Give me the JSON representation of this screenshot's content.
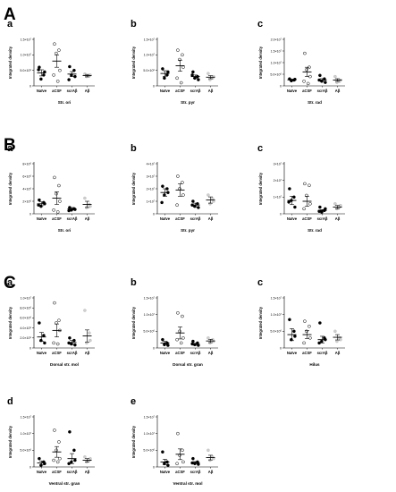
{
  "figure": {
    "panels": [
      {
        "label": "A"
      },
      {
        "label": "B"
      },
      {
        "label": "C"
      }
    ]
  },
  "chart_data": [
    {
      "type": "scatter",
      "panel": "A",
      "sub": "a",
      "xlabel": "Str. ori",
      "ylabel": "Integrated density",
      "ylim": [
        0,
        15000000
      ],
      "yticks": [
        {
          "v": 0,
          "label": "0"
        },
        {
          "v": 5000000,
          "label": "5.0×10⁶"
        },
        {
          "v": 10000000,
          "label": "1.0×10⁷"
        },
        {
          "v": 15000000,
          "label": "1.5×10⁷"
        }
      ],
      "categories": [
        "Naïve",
        "aCSF",
        "scrAβ",
        "Aβ"
      ],
      "series": [
        {
          "points": [
            6000000,
            3500000,
            2200000,
            4500000,
            5200000
          ],
          "mean": 4200000,
          "sem": 1000000
        },
        {
          "points": [
            13500000,
            11500000,
            10500000,
            5000000,
            3500000,
            1500000
          ],
          "mean": 8000000,
          "sem": 2000000
        },
        {
          "points": [
            6200000,
            5000000,
            3500000,
            3000000,
            2000000
          ],
          "mean": 3800000,
          "sem": 800000
        },
        {
          "points": [
            3800000,
            3200000,
            3000000,
            3500000
          ],
          "mean": 3300000,
          "sem": 400000
        }
      ]
    },
    {
      "type": "scatter",
      "panel": "A",
      "sub": "b",
      "xlabel": "Str. pyr",
      "ylabel": "Integrated density",
      "ylim": [
        0,
        15000000
      ],
      "yticks": [
        {
          "v": 0,
          "label": "0"
        },
        {
          "v": 5000000,
          "label": "5.0×10⁶"
        },
        {
          "v": 10000000,
          "label": "1.0×10⁷"
        },
        {
          "v": 15000000,
          "label": "1.5×10⁷"
        }
      ],
      "categories": [
        "Naïve",
        "aCSF",
        "scrAβ",
        "Aβ"
      ],
      "series": [
        {
          "points": [
            5500000,
            3500000,
            2500000,
            4500000
          ],
          "mean": 4000000,
          "sem": 900000
        },
        {
          "points": [
            11500000,
            10000000,
            8500000,
            6000000,
            2500000,
            1000000
          ],
          "mean": 6500000,
          "sem": 1800000
        },
        {
          "points": [
            4500000,
            3000000,
            2500000,
            2000000,
            3500000
          ],
          "mean": 3000000,
          "sem": 500000
        },
        {
          "points": [
            4000000,
            2500000,
            2000000,
            3000000
          ],
          "mean": 2800000,
          "sem": 500000
        }
      ]
    },
    {
      "type": "scatter",
      "panel": "A",
      "sub": "c",
      "xlabel": "Str. rad",
      "ylabel": "Integrated density",
      "ylim": [
        0,
        20000000
      ],
      "yticks": [
        {
          "v": 0,
          "label": "0"
        },
        {
          "v": 5000000,
          "label": "5.0×10⁶"
        },
        {
          "v": 10000000,
          "label": "1.0×10⁷"
        },
        {
          "v": 15000000,
          "label": "1.5×10⁷"
        },
        {
          "v": 20000000,
          "label": "2.0×10⁷"
        }
      ],
      "categories": [
        "Naïve",
        "aCSF",
        "scrAβ",
        "Aβ"
      ],
      "series": [
        {
          "points": [
            3000000,
            2500000,
            2200000,
            2800000
          ],
          "mean": 2600000,
          "sem": 300000
        },
        {
          "points": [
            14000000,
            8000000,
            7000000,
            4000000,
            2000000,
            1000000
          ],
          "mean": 6000000,
          "sem": 2000000
        },
        {
          "points": [
            4500000,
            3000000,
            2000000,
            1500000,
            2500000
          ],
          "mean": 2500000,
          "sem": 600000
        },
        {
          "points": [
            4000000,
            2000000,
            1500000,
            2500000
          ],
          "mean": 2500000,
          "sem": 600000
        }
      ]
    },
    {
      "type": "scatter",
      "panel": "B",
      "sub": "a",
      "xlabel": "Str. ori",
      "ylabel": "Integrated density",
      "ylim": [
        0,
        8000000
      ],
      "yticks": [
        {
          "v": 0,
          "label": "0"
        },
        {
          "v": 2000000,
          "label": "2×10⁶"
        },
        {
          "v": 4000000,
          "label": "4×10⁶"
        },
        {
          "v": 6000000,
          "label": "6×10⁶"
        },
        {
          "v": 8000000,
          "label": "8×10⁶"
        }
      ],
      "categories": [
        "Naïve",
        "aCSF",
        "scrAβ",
        "Aβ"
      ],
      "series": [
        {
          "points": [
            2200000,
            1800000,
            1200000,
            1600000,
            1400000
          ],
          "mean": 1600000,
          "sem": 300000
        },
        {
          "points": [
            5800000,
            4500000,
            3200000,
            2000000,
            600000,
            300000
          ],
          "mean": 2500000,
          "sem": 1000000
        },
        {
          "points": [
            1000000,
            800000,
            600000,
            700000,
            500000
          ],
          "mean": 800000,
          "sem": 200000
        },
        {
          "points": [
            2500000,
            1500000,
            1000000,
            1200000
          ],
          "mean": 1500000,
          "sem": 500000
        }
      ]
    },
    {
      "type": "scatter",
      "panel": "B",
      "sub": "b",
      "xlabel": "Str. pyr",
      "ylabel": "Integrated density",
      "ylim": [
        0,
        40000000
      ],
      "yticks": [
        {
          "v": 0,
          "label": "0"
        },
        {
          "v": 10000000,
          "label": "1×10⁷"
        },
        {
          "v": 20000000,
          "label": "2×10⁷"
        },
        {
          "v": 30000000,
          "label": "3×10⁷"
        },
        {
          "v": 40000000,
          "label": "4×10⁷"
        }
      ],
      "categories": [
        "Naïve",
        "aCSF",
        "scrAβ",
        "Aβ"
      ],
      "series": [
        {
          "points": [
            22000000,
            20000000,
            15000000,
            17000000,
            9000000
          ],
          "mean": 17000000,
          "sem": 3000000
        },
        {
          "points": [
            30000000,
            25000000,
            20000000,
            15000000,
            7000000
          ],
          "mean": 19000000,
          "sem": 5000000
        },
        {
          "points": [
            10000000,
            8000000,
            6000000,
            5000000,
            7000000
          ],
          "mean": 7000000,
          "sem": 1500000
        },
        {
          "points": [
            15000000,
            12000000,
            8000000,
            10000000
          ],
          "mean": 11000000,
          "sem": 2500000
        }
      ]
    },
    {
      "type": "scatter",
      "panel": "B",
      "sub": "c",
      "xlabel": "Str. rad",
      "ylabel": "Integrated density",
      "ylim": [
        0,
        30000000
      ],
      "yticks": [
        {
          "v": 0,
          "label": "0"
        },
        {
          "v": 10000000,
          "label": "1×10⁷"
        },
        {
          "v": 20000000,
          "label": "2×10⁷"
        },
        {
          "v": 30000000,
          "label": "3×10⁷"
        }
      ],
      "categories": [
        "Naïve",
        "aCSF",
        "scrAβ",
        "Aβ"
      ],
      "series": [
        {
          "points": [
            15000000,
            10000000,
            8000000,
            4000000,
            7000000
          ],
          "mean": 8000000,
          "sem": 2500000
        },
        {
          "points": [
            18000000,
            17000000,
            11000000,
            6000000,
            3000000
          ],
          "mean": 7500000,
          "sem": 3000000
        },
        {
          "points": [
            4000000,
            2000000,
            1000000,
            3000000,
            1500000
          ],
          "mean": 2000000,
          "sem": 500000
        },
        {
          "points": [
            6000000,
            4000000,
            3000000,
            5000000
          ],
          "mean": 4000000,
          "sem": 1000000
        }
      ]
    },
    {
      "type": "scatter",
      "panel": "C",
      "sub": "a",
      "xlabel": "Dorsal str. mol",
      "ylabel": "Integrated density",
      "ylim": [
        0,
        10000000
      ],
      "yticks": [
        {
          "v": 0,
          "label": "0"
        },
        {
          "v": 2000000,
          "label": "2.0×10⁶"
        },
        {
          "v": 4000000,
          "label": "4.0×10⁶"
        },
        {
          "v": 6000000,
          "label": "6.0×10⁶"
        },
        {
          "v": 8000000,
          "label": "8.0×10⁶"
        },
        {
          "v": 10000000,
          "label": "1.0×10⁷"
        }
      ],
      "categories": [
        "Naïve",
        "aCSF",
        "scrAβ",
        "Aβ"
      ],
      "series": [
        {
          "points": [
            5000000,
            2500000,
            1500000,
            1000000
          ],
          "mean": 2200000,
          "sem": 900000
        },
        {
          "points": [
            9000000,
            5500000,
            5000000,
            3500000,
            1000000,
            800000
          ],
          "mean": 3500000,
          "sem": 1300000
        },
        {
          "points": [
            2000000,
            1500000,
            800000,
            600000,
            1000000
          ],
          "mean": 1100000,
          "sem": 400000
        },
        {
          "points": [
            7500000,
            3000000,
            1000000,
            1500000
          ],
          "mean": 2400000,
          "sem": 1200000
        }
      ]
    },
    {
      "type": "scatter",
      "panel": "C",
      "sub": "b",
      "xlabel": "Dorsal str. gran",
      "ylabel": "Integrated density",
      "ylim": [
        0,
        15000000
      ],
      "yticks": [
        {
          "v": 0,
          "label": "0"
        },
        {
          "v": 5000000,
          "label": "5.0×10⁶"
        },
        {
          "v": 10000000,
          "label": "1.0×10⁷"
        },
        {
          "v": 15000000,
          "label": "1.5×10⁷"
        }
      ],
      "categories": [
        "Naïve",
        "aCSF",
        "scrAβ",
        "Aβ"
      ],
      "series": [
        {
          "points": [
            2500000,
            1500000,
            1000000,
            800000
          ],
          "mean": 1500000,
          "sem": 500000
        },
        {
          "points": [
            10500000,
            9500000,
            5000000,
            3000000,
            2500000,
            1500000
          ],
          "mean": 4500000,
          "sem": 1800000
        },
        {
          "points": [
            2000000,
            1500000,
            1000000,
            800000,
            1200000
          ],
          "mean": 1100000,
          "sem": 300000
        },
        {
          "points": [
            3000000,
            2500000,
            1500000,
            2000000
          ],
          "mean": 2100000,
          "sem": 500000
        }
      ]
    },
    {
      "type": "scatter",
      "panel": "C",
      "sub": "c",
      "xlabel": "Hilus",
      "ylabel": "Integrated density",
      "ylim": [
        0,
        15000000
      ],
      "yticks": [
        {
          "v": 0,
          "label": "0"
        },
        {
          "v": 5000000,
          "label": "5.0×10⁶"
        },
        {
          "v": 10000000,
          "label": "1.0×10⁷"
        },
        {
          "v": 15000000,
          "label": "1.5×10⁷"
        }
      ],
      "categories": [
        "Naïve",
        "aCSF",
        "scrAβ",
        "Aβ"
      ],
      "series": [
        {
          "points": [
            8500000,
            5000000,
            2500000,
            3500000
          ],
          "mean": 4000000,
          "sem": 1800000
        },
        {
          "points": [
            8000000,
            6500000,
            5000000,
            3000000,
            1500000
          ],
          "mean": 4000000,
          "sem": 1200000
        },
        {
          "points": [
            7500000,
            3000000,
            2000000,
            2500000,
            1500000
          ],
          "mean": 2500000,
          "sem": 1000000
        },
        {
          "points": [
            5000000,
            3000000,
            2000000,
            2500000
          ],
          "mean": 3200000,
          "sem": 800000
        }
      ]
    },
    {
      "type": "scatter",
      "panel": "C",
      "sub": "d",
      "xlabel": "Ventral str. gran",
      "ylabel": "Integrated density",
      "ylim": [
        0,
        15000000
      ],
      "yticks": [
        {
          "v": 0,
          "label": "0"
        },
        {
          "v": 5000000,
          "label": "5.0×10⁶"
        },
        {
          "v": 10000000,
          "label": "1.0×10⁷"
        },
        {
          "v": 15000000,
          "label": "1.5×10⁷"
        }
      ],
      "categories": [
        "Naïve",
        "aCSF",
        "scrAβ",
        "Aβ"
      ],
      "series": [
        {
          "points": [
            2500000,
            1500000,
            500000,
            1000000
          ],
          "mean": 1200000,
          "sem": 600000
        },
        {
          "points": [
            11000000,
            7500000,
            5000000,
            2500000,
            2000000,
            1500000
          ],
          "mean": 4500000,
          "sem": 1600000
        },
        {
          "points": [
            10500000,
            5000000,
            1500000,
            2000000,
            1000000
          ],
          "mean": 2500000,
          "sem": 1500000
        },
        {
          "points": [
            3000000,
            2000000,
            1500000,
            2500000
          ],
          "mean": 2000000,
          "sem": 500000
        }
      ]
    },
    {
      "type": "scatter",
      "panel": "C",
      "sub": "e",
      "xlabel": "Ventral str. mol",
      "ylabel": "Integrated density",
      "ylim": [
        0,
        15000000
      ],
      "yticks": [
        {
          "v": 0,
          "label": "0"
        },
        {
          "v": 5000000,
          "label": "5.0×10⁶"
        },
        {
          "v": 10000000,
          "label": "1.0×10⁷"
        },
        {
          "v": 15000000,
          "label": "1.5×10⁷"
        }
      ],
      "categories": [
        "Naïve",
        "aCSF",
        "scrAβ",
        "Aβ"
      ],
      "series": [
        {
          "points": [
            4500000,
            1500000,
            1000000,
            500000
          ],
          "mean": 1500000,
          "sem": 800000
        },
        {
          "points": [
            10000000,
            5000000,
            3500000,
            1500000,
            1000000
          ],
          "mean": 3800000,
          "sem": 1600000
        },
        {
          "points": [
            2500000,
            1500000,
            1000000,
            800000,
            1200000
          ],
          "mean": 1300000,
          "sem": 300000
        },
        {
          "points": [
            5000000,
            3000000,
            2000000,
            2500000
          ],
          "mean": 2800000,
          "sem": 700000
        }
      ]
    }
  ],
  "style": {
    "marker_colors": [
      "#000000",
      "#ffffff",
      "#000000",
      "#cfcfcf"
    ],
    "marker_strokes": [
      "#000000",
      "#000000",
      "#000000",
      "#bdbdbd"
    ],
    "mean_bar_color": "#000000"
  }
}
